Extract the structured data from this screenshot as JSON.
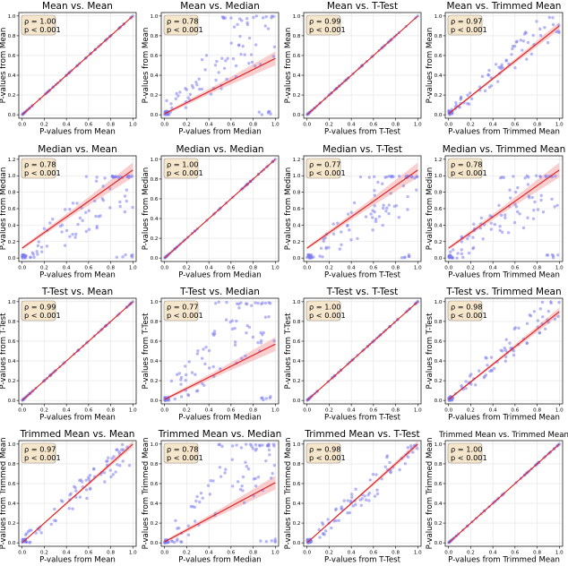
{
  "colors": {
    "point": "#7b7bf0",
    "line": "#e31a1c",
    "band": "#f4a5a5",
    "statbox_fill": "#f5e6cc",
    "statbox_edge": "#9a8f80",
    "grid": "#e3e3e3"
  },
  "chart_data": [
    {
      "type": "scatter",
      "title": "Mean vs. Mean",
      "xlabel": "P-values from Mean",
      "ylabel": "P-values from Mean",
      "xlim": [
        0,
        1
      ],
      "ylim": [
        0,
        1
      ],
      "xticks": [
        "0.0",
        "0.2",
        "0.4",
        "0.6",
        "0.8",
        "1.0"
      ],
      "yticks": [
        "0.0",
        "0.2",
        "0.4",
        "0.6",
        "0.8",
        "1.0"
      ],
      "rho": "ρ = 1.00",
      "p": "p < 0.001",
      "kind": "identity",
      "fit": {
        "slope": 1.0,
        "intercept": 0.0,
        "band": 0.0
      }
    },
    {
      "type": "scatter",
      "title": "Mean vs. Median",
      "xlabel": "P-values from Median",
      "ylabel": "P-values from Mean",
      "xlim": [
        0,
        1
      ],
      "ylim": [
        0,
        1
      ],
      "xticks": [
        "0.0",
        "0.2",
        "0.4",
        "0.6",
        "0.8",
        "1.0"
      ],
      "yticks": [
        "0.0",
        "0.2",
        "0.4",
        "0.6",
        "0.8",
        "1.0"
      ],
      "rho": "ρ = 0.78",
      "p": "p < 0.001",
      "kind": "scatter",
      "seed": 11,
      "noise": 0.3,
      "fit": {
        "slope": 0.56,
        "intercept": 0.01,
        "band": 0.07
      }
    },
    {
      "type": "scatter",
      "title": "Mean vs. T-Test",
      "xlabel": "P-values from T-Test",
      "ylabel": "P-values from Mean",
      "xlim": [
        0,
        1
      ],
      "ylim": [
        0,
        1
      ],
      "xticks": [
        "0.0",
        "0.2",
        "0.4",
        "0.6",
        "0.8",
        "1.0"
      ],
      "yticks": [
        "0.0",
        "0.2",
        "0.4",
        "0.6",
        "0.8",
        "1.0"
      ],
      "rho": "ρ = 0.99",
      "p": "p < 0.001",
      "kind": "identity",
      "fit": {
        "slope": 1.0,
        "intercept": 0.0,
        "band": 0.0
      }
    },
    {
      "type": "scatter",
      "title": "Mean vs. Trimmed Mean",
      "xlabel": "P-values from Trimmed Mean",
      "ylabel": "P-values from Mean",
      "xlim": [
        0,
        1
      ],
      "ylim": [
        0,
        1
      ],
      "xticks": [
        "0.0",
        "0.2",
        "0.4",
        "0.6",
        "0.8",
        "1.0"
      ],
      "yticks": [
        "0.0",
        "0.2",
        "0.4",
        "0.6",
        "0.8",
        "1.0"
      ],
      "rho": "ρ = 0.97",
      "p": "p < 0.001",
      "kind": "scatter",
      "seed": 23,
      "noise": 0.14,
      "fit": {
        "slope": 0.89,
        "intercept": 0.01,
        "band": 0.04
      }
    },
    {
      "type": "scatter",
      "title": "Median vs. Mean",
      "xlabel": "P-values from Mean",
      "ylabel": "P-values from Median",
      "xlim": [
        0,
        1
      ],
      "ylim": [
        0,
        1.2
      ],
      "xticks": [
        "0.0",
        "0.2",
        "0.4",
        "0.6",
        "0.8",
        "1.0"
      ],
      "yticks": [
        "0.0",
        "0.2",
        "0.4",
        "0.6",
        "0.8",
        "1.0",
        "1.2"
      ],
      "rho": "ρ = 0.78",
      "p": "p < 0.001",
      "kind": "scatter",
      "seed": 37,
      "noise": 0.3,
      "fit": {
        "slope": 0.95,
        "intercept": 0.12,
        "band": 0.09
      }
    },
    {
      "type": "scatter",
      "title": "Median vs. Median",
      "xlabel": "P-values from Median",
      "ylabel": "P-values from Median",
      "xlim": [
        0,
        1
      ],
      "ylim": [
        0,
        1
      ],
      "xticks": [
        "0.0",
        "0.2",
        "0.4",
        "0.6",
        "0.8",
        "1.0"
      ],
      "yticks": [
        "0.0",
        "0.2",
        "0.4",
        "0.6",
        "0.8",
        "1.0"
      ],
      "rho": "ρ = 1.00",
      "p": "p < 0.001",
      "kind": "identity",
      "fit": {
        "slope": 1.0,
        "intercept": 0.0,
        "band": 0.0
      }
    },
    {
      "type": "scatter",
      "title": "Median vs. T-Test",
      "xlabel": "P-values from T-Test",
      "ylabel": "P-values from Median",
      "xlim": [
        0,
        1
      ],
      "ylim": [
        0,
        1.2
      ],
      "xticks": [
        "0.0",
        "0.2",
        "0.4",
        "0.6",
        "0.8",
        "1.0"
      ],
      "yticks": [
        "0.0",
        "0.2",
        "0.4",
        "0.6",
        "0.8",
        "1.0",
        "1.2"
      ],
      "rho": "ρ = 0.77",
      "p": "p < 0.001",
      "kind": "scatter",
      "seed": 41,
      "noise": 0.3,
      "fit": {
        "slope": 0.95,
        "intercept": 0.12,
        "band": 0.09
      }
    },
    {
      "type": "scatter",
      "title": "Median vs. Trimmed Mean",
      "xlabel": "P-values from Trimmed Mean",
      "ylabel": "P-values from Median",
      "xlim": [
        0,
        1
      ],
      "ylim": [
        0,
        1.2
      ],
      "xticks": [
        "0.0",
        "0.2",
        "0.4",
        "0.6",
        "0.8",
        "1.0"
      ],
      "yticks": [
        "0.0",
        "0.2",
        "0.4",
        "0.6",
        "0.8",
        "1.0",
        "1.2"
      ],
      "rho": "ρ = 0.78",
      "p": "p < 0.001",
      "kind": "scatter",
      "seed": 53,
      "noise": 0.3,
      "fit": {
        "slope": 0.95,
        "intercept": 0.12,
        "band": 0.09
      }
    },
    {
      "type": "scatter",
      "title": "T-Test vs. Mean",
      "xlabel": "P-values from Mean",
      "ylabel": "P-values from T-Test",
      "xlim": [
        0,
        1
      ],
      "ylim": [
        0,
        1
      ],
      "xticks": [
        "0.0",
        "0.2",
        "0.4",
        "0.6",
        "0.8",
        "1.0"
      ],
      "yticks": [
        "0.0",
        "0.2",
        "0.4",
        "0.6",
        "0.8",
        "1.0"
      ],
      "rho": "ρ = 0.99",
      "p": "p < 0.001",
      "kind": "identity",
      "fit": {
        "slope": 1.0,
        "intercept": 0.0,
        "band": 0.0
      }
    },
    {
      "type": "scatter",
      "title": "T-Test vs. Median",
      "xlabel": "P-values from Median",
      "ylabel": "P-values from T-Test",
      "xlim": [
        0,
        1
      ],
      "ylim": [
        0,
        1
      ],
      "xticks": [
        "0.0",
        "0.2",
        "0.4",
        "0.6",
        "0.8",
        "1.0"
      ],
      "yticks": [
        "0.0",
        "0.2",
        "0.4",
        "0.6",
        "0.8",
        "1.0"
      ],
      "rho": "ρ = 0.77",
      "p": "p < 0.001",
      "kind": "scatter",
      "seed": 67,
      "noise": 0.3,
      "fit": {
        "slope": 0.56,
        "intercept": 0.01,
        "band": 0.07
      }
    },
    {
      "type": "scatter",
      "title": "T-Test vs. T-Test",
      "xlabel": "P-values from T-Test",
      "ylabel": "P-values from T-Test",
      "xlim": [
        0,
        1
      ],
      "ylim": [
        0,
        1
      ],
      "xticks": [
        "0.0",
        "0.2",
        "0.4",
        "0.6",
        "0.8",
        "1.0"
      ],
      "yticks": [
        "0.0",
        "0.2",
        "0.4",
        "0.6",
        "0.8",
        "1.0"
      ],
      "rho": "ρ = 1.00",
      "p": "p < 0.001",
      "kind": "identity",
      "fit": {
        "slope": 1.0,
        "intercept": 0.0,
        "band": 0.0
      }
    },
    {
      "type": "scatter",
      "title": "T-Test vs. Trimmed Mean",
      "xlabel": "P-values from Trimmed Mean",
      "ylabel": "P-values from T-Test",
      "xlim": [
        0,
        1
      ],
      "ylim": [
        0,
        1
      ],
      "xticks": [
        "0.0",
        "0.2",
        "0.4",
        "0.6",
        "0.8",
        "1.0"
      ],
      "yticks": [
        "0.0",
        "0.2",
        "0.4",
        "0.6",
        "0.8",
        "1.0"
      ],
      "rho": "ρ = 0.98",
      "p": "p < 0.001",
      "kind": "scatter",
      "seed": 79,
      "noise": 0.14,
      "fit": {
        "slope": 0.89,
        "intercept": 0.01,
        "band": 0.04
      }
    },
    {
      "type": "scatter",
      "title": "Trimmed Mean vs. Mean",
      "xlabel": "P-values from Mean",
      "ylabel": "P-values from Trimmed Mean",
      "xlim": [
        0,
        1
      ],
      "ylim": [
        0,
        1
      ],
      "xticks": [
        "0.0",
        "0.2",
        "0.4",
        "0.6",
        "0.8",
        "1.0"
      ],
      "yticks": [
        "0.0",
        "0.2",
        "0.4",
        "0.6",
        "0.8",
        "1.0"
      ],
      "rho": "ρ = 0.97",
      "p": "p < 0.001",
      "kind": "scatter",
      "seed": 83,
      "noise": 0.14,
      "fit": {
        "slope": 1.0,
        "intercept": 0.0,
        "band": 0.03
      }
    },
    {
      "type": "scatter",
      "title": "Trimmed Mean vs. Median",
      "xlabel": "P-values from Median",
      "ylabel": "P-values from Trimmed Mean",
      "xlim": [
        0,
        1
      ],
      "ylim": [
        0,
        1
      ],
      "xticks": [
        "0.0",
        "0.2",
        "0.4",
        "0.6",
        "0.8",
        "1.0"
      ],
      "yticks": [
        "0.0",
        "0.2",
        "0.4",
        "0.6",
        "0.8",
        "1.0"
      ],
      "rho": "ρ = 0.78",
      "p": "p < 0.001",
      "kind": "scatter",
      "seed": 97,
      "noise": 0.3,
      "fit": {
        "slope": 0.6,
        "intercept": 0.01,
        "band": 0.07
      }
    },
    {
      "type": "scatter",
      "title": "Trimmed Mean vs. T-Test",
      "xlabel": "P-values from T-Test",
      "ylabel": "P-values from Trimmed Mean",
      "xlim": [
        0,
        1
      ],
      "ylim": [
        0,
        1
      ],
      "xticks": [
        "0.0",
        "0.2",
        "0.4",
        "0.6",
        "0.8",
        "1.0"
      ],
      "yticks": [
        "0.0",
        "0.2",
        "0.4",
        "0.6",
        "0.8",
        "1.0"
      ],
      "rho": "ρ = 0.98",
      "p": "p < 0.001",
      "kind": "scatter",
      "seed": 101,
      "noise": 0.14,
      "fit": {
        "slope": 1.0,
        "intercept": 0.0,
        "band": 0.03
      }
    },
    {
      "type": "scatter",
      "title": "Trimmed Mean vs. Trimmed Mean",
      "xlabel": "P-values from Trimmed Mean",
      "ylabel": "P-values from Trimmed Mean",
      "xlim": [
        0,
        1
      ],
      "ylim": [
        0,
        1
      ],
      "xticks": [
        "0.0",
        "0.2",
        "0.4",
        "0.6",
        "0.8",
        "1.0"
      ],
      "yticks": [
        "0.0",
        "0.2",
        "0.4",
        "0.6",
        "0.8",
        "1.0"
      ],
      "rho": "ρ = 1.00",
      "p": "p < 0.001",
      "kind": "identity",
      "fit": {
        "slope": 1.0,
        "intercept": 0.0,
        "band": 0.0
      }
    }
  ]
}
